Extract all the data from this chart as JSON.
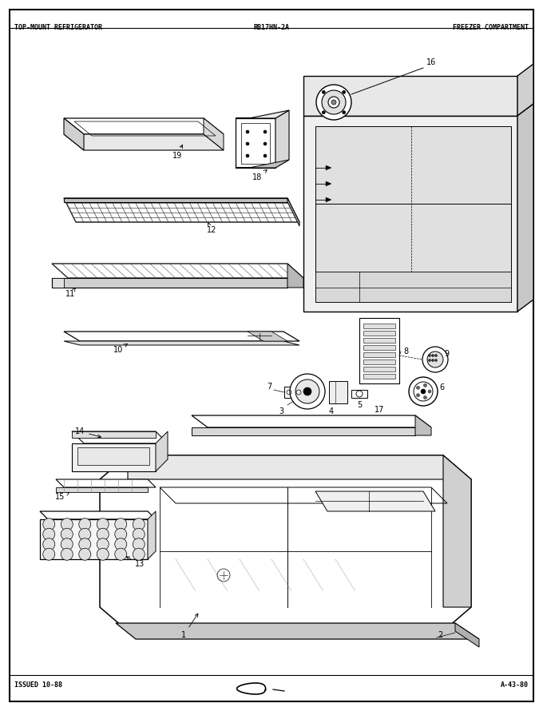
{
  "title_left": "TOP-MOUNT REFRIGERATOR",
  "title_center": "RB17HN-2A",
  "title_right": "FREEZER COMPARTMENT",
  "footer_left": "ISSUED 10-88",
  "footer_right": "A-43-80",
  "bg_color": "#ffffff",
  "border_color": "#000000",
  "text_color": "#000000",
  "fig_width": 6.8,
  "fig_height": 8.9,
  "dpi": 100
}
